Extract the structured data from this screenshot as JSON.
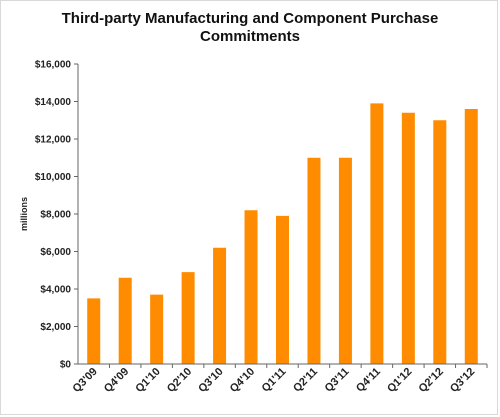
{
  "chart_data": {
    "type": "bar",
    "title_lines": [
      "Third-party Manufacturing and Component Purchase",
      "Commitments"
    ],
    "ylabel": "millions",
    "xlabel": "",
    "categories": [
      "Q3'09",
      "Q4'09",
      "Q1'10",
      "Q2'10",
      "Q3'10",
      "Q4'10",
      "Q1'11",
      "Q2'11",
      "Q3'11",
      "Q4'11",
      "Q1'12",
      "Q2'12",
      "Q3'12"
    ],
    "values": [
      3500,
      4600,
      3700,
      4900,
      6200,
      8200,
      7900,
      11000,
      11000,
      13900,
      13400,
      13000,
      13600
    ],
    "ylim": [
      0,
      16000
    ],
    "yticks": [
      0,
      2000,
      4000,
      6000,
      8000,
      10000,
      12000,
      14000,
      16000
    ],
    "ytick_labels": [
      "$0",
      "$2,000",
      "$4,000",
      "$6,000",
      "$8,000",
      "$10,000",
      "$12,000",
      "$14,000",
      "$16,000"
    ],
    "grid": false,
    "legend": "none",
    "bar_color": "#ff8c00",
    "axis_color": "#666666"
  }
}
